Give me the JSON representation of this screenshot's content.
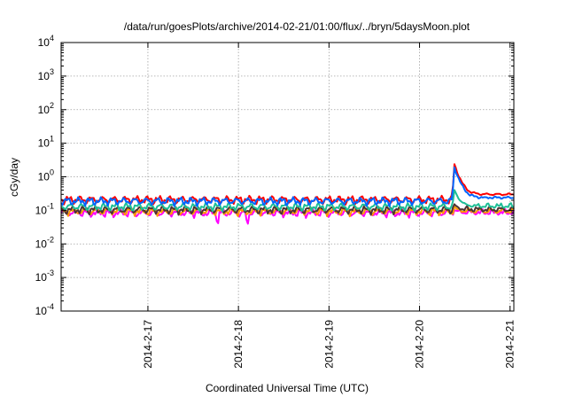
{
  "chart_data": {
    "type": "line",
    "title": "/data/run/goesPlots/archive/2014-02-21/01:00/flux/../bryn/5daysMoon.plot",
    "xlabel": "Coordinated Universal Time (UTC)",
    "ylabel": "cGy/day",
    "yscale": "log",
    "ylim": [
      0.0001,
      10000
    ],
    "y_ticks": [
      {
        "value": 0.0001,
        "base": "10",
        "exp": "-4"
      },
      {
        "value": 0.001,
        "base": "10",
        "exp": "-3"
      },
      {
        "value": 0.01,
        "base": "10",
        "exp": "-2"
      },
      {
        "value": 0.1,
        "base": "10",
        "exp": "-1"
      },
      {
        "value": 1,
        "base": "10",
        "exp": "0"
      },
      {
        "value": 10,
        "base": "10",
        "exp": "1"
      },
      {
        "value": 100,
        "base": "10",
        "exp": "2"
      },
      {
        "value": 1000,
        "base": "10",
        "exp": "3"
      },
      {
        "value": 10000,
        "base": "10",
        "exp": "4"
      }
    ],
    "x_range": [
      "2014-02-16T01:00",
      "2014-02-21T01:00"
    ],
    "x_ticks": [
      {
        "value": "2014-02-17T00:00",
        "label": "2014-2-17"
      },
      {
        "value": "2014-02-18T00:00",
        "label": "2014-2-18"
      },
      {
        "value": "2014-02-19T00:00",
        "label": "2014-2-19"
      },
      {
        "value": "2014-02-20T00:00",
        "label": "2014-2-20"
      },
      {
        "value": "2014-02-21T00:00",
        "label": "2014-2-21"
      }
    ],
    "grid": true,
    "legend": "none",
    "series": [
      {
        "color": "#ff00ff",
        "base": 0.085,
        "events": [
          {
            "t": "2014-02-20T09:00",
            "peak": 0.11,
            "tail": 0.082
          }
        ],
        "spikes": [
          {
            "t": "2014-02-17T18:30",
            "value": 0.028
          },
          {
            "t": "2014-02-18T02:20",
            "value": 0.022
          }
        ]
      },
      {
        "color": "#ff9900",
        "base": 0.095,
        "events": [
          {
            "t": "2014-02-20T09:00",
            "peak": 0.13,
            "tail": 0.09
          }
        ],
        "spikes": []
      },
      {
        "color": "#4d3232",
        "base": 0.105,
        "events": [
          {
            "t": "2014-02-20T09:00",
            "peak": 0.16,
            "tail": 0.1
          }
        ],
        "spikes": []
      },
      {
        "color": "#1ebe96",
        "base": 0.13,
        "events": [
          {
            "t": "2014-02-20T09:00",
            "peak": 0.45,
            "tail": 0.13
          }
        ],
        "spikes": []
      },
      {
        "color": "#ff0000",
        "base": 0.21,
        "events": [
          {
            "t": "2014-02-20T09:00",
            "peak": 2.8,
            "tail": 0.3
          }
        ],
        "spikes": []
      },
      {
        "color": "#0064ff",
        "base": 0.19,
        "events": [
          {
            "t": "2014-02-20T09:00",
            "peak": 2.3,
            "tail": 0.24
          }
        ],
        "spikes": []
      }
    ]
  }
}
